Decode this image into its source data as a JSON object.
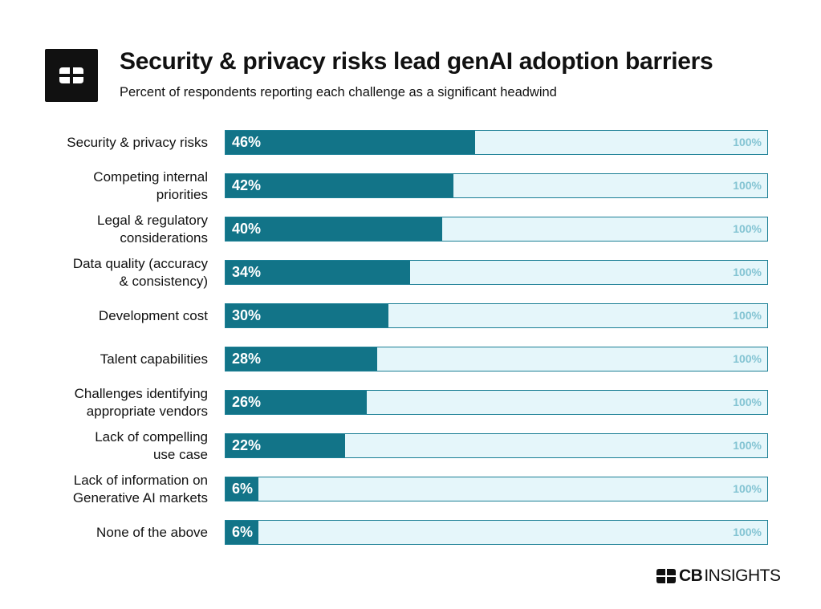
{
  "brand": {
    "logo_name": "CB Insights",
    "wordmark_bold": "CB",
    "wordmark_light": "INSIGHTS"
  },
  "colors": {
    "bar": "#127488",
    "track": "#e5f6fa",
    "track_border": "#1b7f95",
    "max_label": "#84c4d3"
  },
  "chart_data": {
    "type": "bar",
    "orientation": "horizontal",
    "title": "Security & privacy risks lead genAI adoption barriers",
    "subtitle": "Percent of respondents reporting each challenge as a significant headwind",
    "categories": [
      [
        "Security & privacy risks"
      ],
      [
        "Competing internal",
        "priorities"
      ],
      [
        "Legal & regulatory",
        "considerations"
      ],
      [
        "Data quality (accuracy",
        "& consistency)"
      ],
      [
        "Development cost"
      ],
      [
        "Talent capabilities"
      ],
      [
        "Challenges identifying",
        "appropriate vendors"
      ],
      [
        "Lack of compelling",
        "use case"
      ],
      [
        "Lack of information on",
        "Generative AI markets"
      ],
      [
        "None of the above"
      ]
    ],
    "values": [
      46,
      42,
      40,
      34,
      30,
      28,
      26,
      22,
      6,
      6
    ],
    "value_labels": [
      "46%",
      "42%",
      "40%",
      "34%",
      "30%",
      "28%",
      "26%",
      "22%",
      "6%",
      "6%"
    ],
    "max_label": "100%",
    "xlim": [
      0,
      100
    ],
    "unit": "%"
  }
}
